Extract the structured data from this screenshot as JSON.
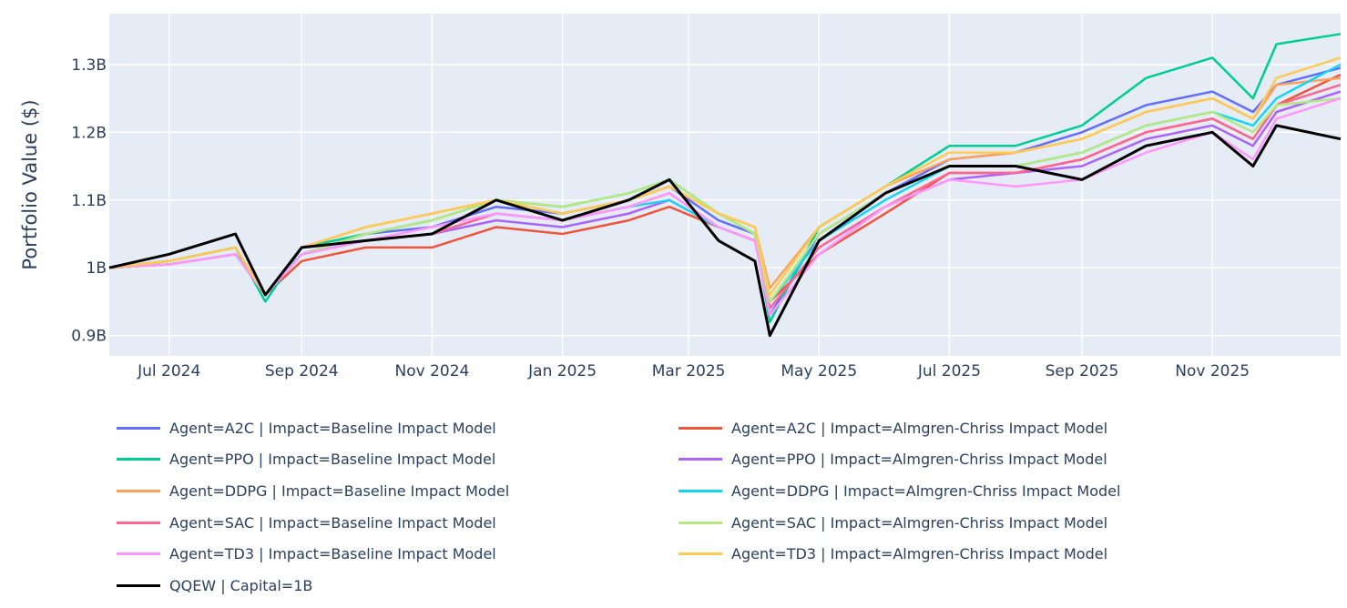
{
  "chart_data": {
    "type": "line",
    "title": "",
    "xlabel": "",
    "ylabel": "Portfolio Value ($)",
    "x_start": "2024-06-03",
    "x_end": "2025-12-31",
    "ylim": [
      0.87,
      1.375
    ],
    "y_ticks": [
      {
        "value": 0.9,
        "label": "0.9B"
      },
      {
        "value": 1.0,
        "label": "1B"
      },
      {
        "value": 1.1,
        "label": "1.1B"
      },
      {
        "value": 1.2,
        "label": "1.2B"
      },
      {
        "value": 1.3,
        "label": "1.3B"
      }
    ],
    "x_ticks": [
      {
        "value": "2024-07-01",
        "label": "Jul 2024"
      },
      {
        "value": "2024-09-01",
        "label": "Sep 2024"
      },
      {
        "value": "2024-11-01",
        "label": "Nov 2024"
      },
      {
        "value": "2025-01-01",
        "label": "Jan 2025"
      },
      {
        "value": "2025-03-01",
        "label": "Mar 2025"
      },
      {
        "value": "2025-05-01",
        "label": "May 2025"
      },
      {
        "value": "2025-07-01",
        "label": "Jul 2025"
      },
      {
        "value": "2025-09-01",
        "label": "Sep 2025"
      },
      {
        "value": "2025-11-01",
        "label": "Nov 2025"
      }
    ],
    "grid": true,
    "legend_position": "bottom",
    "x": [
      "2024-06-03",
      "2024-07-01",
      "2024-08-01",
      "2024-08-15",
      "2024-09-01",
      "2024-10-01",
      "2024-11-01",
      "2024-12-01",
      "2025-01-01",
      "2025-02-01",
      "2025-02-20",
      "2025-03-15",
      "2025-04-01",
      "2025-04-08",
      "2025-05-01",
      "2025-06-01",
      "2025-07-01",
      "2025-08-01",
      "2025-09-01",
      "2025-10-01",
      "2025-11-01",
      "2025-11-20",
      "2025-12-01",
      "2025-12-31"
    ],
    "series": [
      {
        "name": "Agent=A2C | Impact=Baseline Impact Model",
        "color": "#636efa",
        "values": [
          1.0,
          1.01,
          1.03,
          0.96,
          1.02,
          1.05,
          1.06,
          1.09,
          1.08,
          1.1,
          1.12,
          1.07,
          1.05,
          0.93,
          1.05,
          1.11,
          1.16,
          1.17,
          1.2,
          1.24,
          1.26,
          1.23,
          1.27,
          1.295
        ]
      },
      {
        "name": "Agent=A2C | Impact=Almgren-Chriss Impact Model",
        "color": "#EF553B",
        "values": [
          1.0,
          1.005,
          1.02,
          0.96,
          1.01,
          1.03,
          1.03,
          1.06,
          1.05,
          1.07,
          1.09,
          1.06,
          1.04,
          0.95,
          1.02,
          1.08,
          1.14,
          1.14,
          1.16,
          1.2,
          1.22,
          1.19,
          1.24,
          1.285
        ]
      },
      {
        "name": "Agent=PPO | Impact=Baseline Impact Model",
        "color": "#00cc96",
        "values": [
          1.0,
          1.01,
          1.03,
          0.95,
          1.03,
          1.05,
          1.07,
          1.1,
          1.09,
          1.11,
          1.13,
          1.08,
          1.05,
          0.92,
          1.06,
          1.12,
          1.18,
          1.18,
          1.21,
          1.28,
          1.31,
          1.25,
          1.33,
          1.345
        ]
      },
      {
        "name": "Agent=PPO | Impact=Almgren-Chriss Impact Model",
        "color": "#ab63fa",
        "values": [
          1.0,
          1.005,
          1.02,
          0.96,
          1.02,
          1.04,
          1.05,
          1.07,
          1.06,
          1.08,
          1.1,
          1.06,
          1.04,
          0.94,
          1.03,
          1.09,
          1.13,
          1.14,
          1.15,
          1.19,
          1.21,
          1.18,
          1.23,
          1.26
        ]
      },
      {
        "name": "Agent=DDPG | Impact=Baseline Impact Model",
        "color": "#FFA15A",
        "values": [
          1.0,
          1.01,
          1.03,
          0.96,
          1.03,
          1.06,
          1.08,
          1.1,
          1.08,
          1.1,
          1.12,
          1.08,
          1.06,
          0.97,
          1.06,
          1.12,
          1.16,
          1.17,
          1.19,
          1.23,
          1.25,
          1.22,
          1.27,
          1.28
        ]
      },
      {
        "name": "Agent=DDPG | Impact=Almgren-Chriss Impact Model",
        "color": "#19d3f3",
        "values": [
          1.0,
          1.005,
          1.02,
          0.96,
          1.02,
          1.04,
          1.05,
          1.08,
          1.07,
          1.09,
          1.1,
          1.06,
          1.04,
          0.95,
          1.04,
          1.1,
          1.15,
          1.15,
          1.17,
          1.21,
          1.23,
          1.21,
          1.25,
          1.3
        ]
      },
      {
        "name": "Agent=SAC | Impact=Baseline Impact Model",
        "color": "#FF6692",
        "values": [
          1.0,
          1.005,
          1.02,
          0.96,
          1.02,
          1.04,
          1.05,
          1.08,
          1.07,
          1.09,
          1.11,
          1.06,
          1.04,
          0.94,
          1.03,
          1.09,
          1.14,
          1.14,
          1.16,
          1.2,
          1.22,
          1.19,
          1.24,
          1.27
        ]
      },
      {
        "name": "Agent=SAC | Impact=Almgren-Chriss Impact Model",
        "color": "#B6E880",
        "values": [
          1.0,
          1.005,
          1.02,
          0.96,
          1.02,
          1.05,
          1.07,
          1.1,
          1.09,
          1.11,
          1.13,
          1.08,
          1.05,
          0.95,
          1.05,
          1.11,
          1.15,
          1.15,
          1.17,
          1.21,
          1.23,
          1.2,
          1.24,
          1.25
        ]
      },
      {
        "name": "Agent=TD3 | Impact=Baseline Impact Model",
        "color": "#FF97FF",
        "values": [
          1.0,
          1.005,
          1.02,
          0.96,
          1.02,
          1.04,
          1.06,
          1.08,
          1.07,
          1.09,
          1.11,
          1.06,
          1.04,
          0.93,
          1.02,
          1.09,
          1.13,
          1.12,
          1.13,
          1.17,
          1.2,
          1.16,
          1.22,
          1.25
        ]
      },
      {
        "name": "Agent=TD3 | Impact=Almgren-Chriss Impact Model",
        "color": "#FECB52",
        "values": [
          1.0,
          1.01,
          1.03,
          0.96,
          1.03,
          1.06,
          1.08,
          1.1,
          1.08,
          1.1,
          1.12,
          1.08,
          1.06,
          0.96,
          1.06,
          1.12,
          1.17,
          1.17,
          1.19,
          1.23,
          1.25,
          1.22,
          1.28,
          1.31
        ]
      },
      {
        "name": "QQEW | Capital=1B",
        "color": "#000000",
        "values": [
          1.0,
          1.02,
          1.05,
          0.96,
          1.03,
          1.04,
          1.05,
          1.1,
          1.07,
          1.1,
          1.13,
          1.04,
          1.01,
          0.9,
          1.04,
          1.11,
          1.15,
          1.15,
          1.13,
          1.18,
          1.2,
          1.15,
          1.21,
          1.19
        ]
      }
    ]
  }
}
